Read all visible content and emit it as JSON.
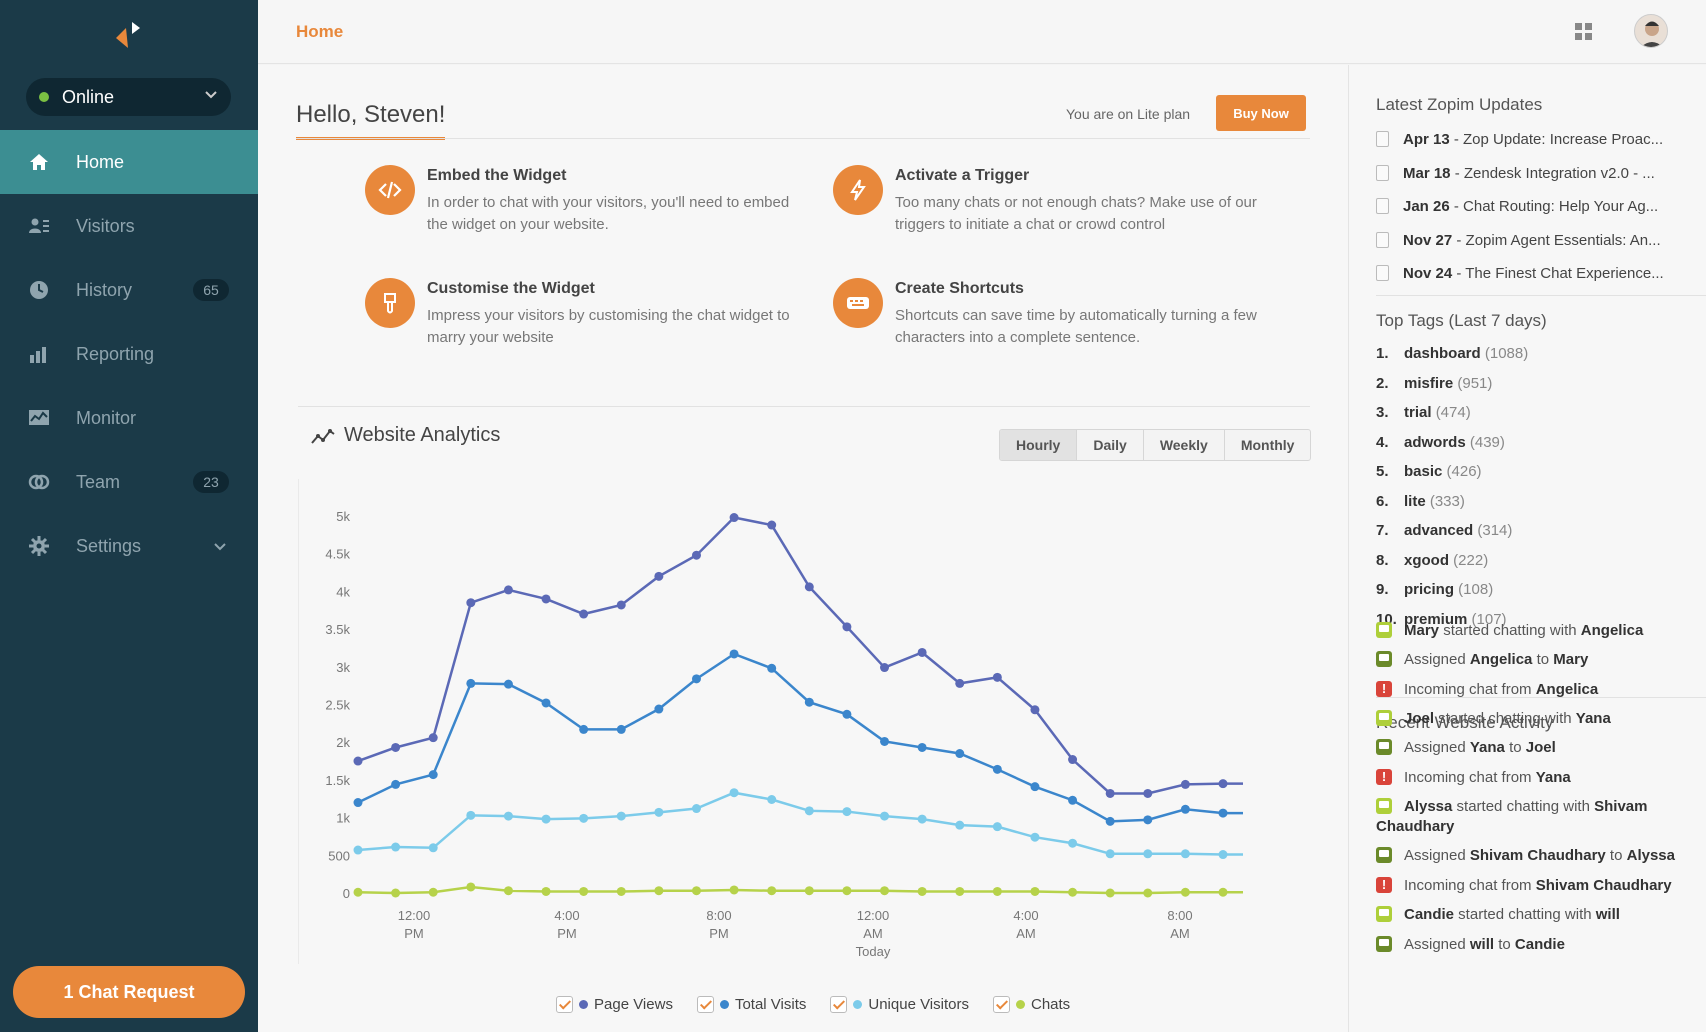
{
  "sidebar": {
    "status": "Online",
    "items": [
      {
        "label": "Home",
        "icon": "home-icon",
        "active": true
      },
      {
        "label": "Visitors",
        "icon": "visitors-icon"
      },
      {
        "label": "History",
        "icon": "history-icon",
        "badge": "65"
      },
      {
        "label": "Reporting",
        "icon": "bar-chart-icon"
      },
      {
        "label": "Monitor",
        "icon": "monitor-icon"
      },
      {
        "label": "Team",
        "icon": "team-icon",
        "badge": "23"
      },
      {
        "label": "Settings",
        "icon": "gear-icon"
      }
    ],
    "chat_request": "1 Chat Request"
  },
  "topbar": {
    "breadcrumb": "Home"
  },
  "main": {
    "greeting": "Hello, Steven!",
    "plan_text": "You are on Lite plan",
    "buy_label": "Buy Now",
    "cards": [
      {
        "title": "Embed the Widget",
        "text": "In order to chat with your visitors, you'll need to embed the widget on your website.",
        "icon": "code-icon"
      },
      {
        "title": "Activate a Trigger",
        "text": "Too many chats or not enough chats? Make use of our triggers to initiate a chat or crowd control",
        "icon": "lightning-icon"
      },
      {
        "title": "Customise the Widget",
        "text": "Impress your visitors by customising the chat widget to marry your website",
        "icon": "brush-icon"
      },
      {
        "title": "Create Shortcuts",
        "text": "Shortcuts can save time by automatically turning a few characters into a complete sentence.",
        "icon": "keyboard-icon"
      }
    ],
    "analytics_title": "Website Analytics",
    "periods": [
      "Hourly",
      "Daily",
      "Weekly",
      "Monthly"
    ],
    "legend": [
      "Page Views",
      "Total Visits",
      "Unique Visitors",
      "Chats"
    ]
  },
  "chart_data": {
    "type": "line",
    "yticks": [
      "0",
      "500",
      "1k",
      "1.5k",
      "2k",
      "2.5k",
      "3k",
      "3.5k",
      "4k",
      "4.5k",
      "5k"
    ],
    "ylim": [
      0,
      5000
    ],
    "xticks": [
      {
        "line1": "12:00",
        "line2": "PM",
        "line3": ""
      },
      {
        "line1": "4:00",
        "line2": "PM",
        "line3": ""
      },
      {
        "line1": "8:00",
        "line2": "PM",
        "line3": ""
      },
      {
        "line1": "12:00",
        "line2": "AM",
        "line3": "Today"
      },
      {
        "line1": "4:00",
        "line2": "AM",
        "line3": ""
      },
      {
        "line1": "8:00",
        "line2": "AM",
        "line3": ""
      }
    ],
    "series": [
      {
        "name": "Page Views",
        "color": "#5b69b6",
        "values": [
          1750,
          1930,
          2060,
          3850,
          4020,
          3900,
          3700,
          3820,
          4200,
          4480,
          4980,
          4880,
          4060,
          3530,
          2990,
          3190,
          2780,
          2860,
          2430,
          1770,
          1320,
          1320,
          1440,
          1450
        ]
      },
      {
        "name": "Total Visits",
        "color": "#3b86cc",
        "values": [
          1200,
          1440,
          1570,
          2780,
          2770,
          2520,
          2170,
          2170,
          2440,
          2840,
          3170,
          2980,
          2530,
          2370,
          2010,
          1930,
          1850,
          1640,
          1410,
          1230,
          950,
          970,
          1110,
          1060
        ]
      },
      {
        "name": "Unique Visitors",
        "color": "#7ccbea",
        "values": [
          570,
          610,
          600,
          1030,
          1020,
          980,
          990,
          1020,
          1070,
          1120,
          1330,
          1240,
          1090,
          1080,
          1020,
          980,
          900,
          880,
          740,
          660,
          520,
          520,
          520,
          510
        ]
      },
      {
        "name": "Chats",
        "color": "#b6d24a",
        "values": [
          10,
          0,
          10,
          80,
          30,
          20,
          20,
          20,
          30,
          30,
          40,
          30,
          30,
          30,
          30,
          20,
          20,
          20,
          20,
          10,
          0,
          0,
          10,
          10
        ]
      }
    ]
  },
  "right": {
    "updates_title": "Latest Zopim Updates",
    "updates": [
      {
        "date": "Apr 13",
        "text": " - Zop Update: Increase Proac..."
      },
      {
        "date": "Mar 18",
        "text": " - Zendesk Integration v2.0 - ..."
      },
      {
        "date": "Jan 26",
        "text": " - Chat Routing: Help Your Ag..."
      },
      {
        "date": "Nov 27",
        "text": " - Zopim Agent Essentials: An..."
      },
      {
        "date": "Nov 24",
        "text": " - The Finest Chat Experience..."
      }
    ],
    "tags_title": "Top Tags (Last 7 days)",
    "tags": [
      {
        "n": "1.",
        "name": "dashboard",
        "count": "(1088)"
      },
      {
        "n": "2.",
        "name": "misfire",
        "count": "(951)"
      },
      {
        "n": "3.",
        "name": "trial",
        "count": "(474)"
      },
      {
        "n": "4.",
        "name": "adwords",
        "count": "(439)"
      },
      {
        "n": "5.",
        "name": "basic",
        "count": "(426)"
      },
      {
        "n": "6.",
        "name": "lite",
        "count": "(333)"
      },
      {
        "n": "7.",
        "name": "advanced",
        "count": "(314)"
      },
      {
        "n": "8.",
        "name": "xgood",
        "count": "(222)"
      },
      {
        "n": "9.",
        "name": "pricing",
        "count": "(108)"
      },
      {
        "n": "10.",
        "name": "premium",
        "count": "(107)"
      }
    ],
    "activity_title": "Recent Website Activity",
    "activity": [
      {
        "type": "green",
        "a": "Mary",
        "mid": " started chatting with ",
        "b": "Angelica"
      },
      {
        "type": "dgreen",
        "a": "",
        "mid": "Assigned ",
        "b": "Angelica",
        "mid2": " to ",
        "c": "Mary"
      },
      {
        "type": "red",
        "a": "",
        "mid": "Incoming chat from ",
        "b": "Angelica"
      },
      {
        "type": "green",
        "a": "Joel",
        "mid": " started chatting with ",
        "b": "Yana"
      },
      {
        "type": "dgreen",
        "a": "",
        "mid": "Assigned ",
        "b": "Yana",
        "mid2": " to ",
        "c": "Joel"
      },
      {
        "type": "red",
        "a": "",
        "mid": "Incoming chat from ",
        "b": "Yana"
      },
      {
        "type": "green",
        "a": "Alyssa",
        "mid": " started chatting with ",
        "b": "Shivam Chaudhary"
      },
      {
        "type": "dgreen",
        "a": "",
        "mid": "Assigned ",
        "b": "Shivam Chaudhary",
        "mid2": " to ",
        "c": "Alyssa"
      },
      {
        "type": "red",
        "a": "",
        "mid": "Incoming chat from ",
        "b": "Shivam Chaudhary"
      },
      {
        "type": "green",
        "a": "Candie",
        "mid": " started chatting with ",
        "b": "will"
      },
      {
        "type": "dgreen",
        "a": "",
        "mid": "Assigned ",
        "b": "will",
        "mid2": " to ",
        "c": "Candie"
      }
    ]
  },
  "colors": {
    "accent": "#e8883b",
    "sidebar": "#1b3a48",
    "active": "#3c8e92"
  }
}
